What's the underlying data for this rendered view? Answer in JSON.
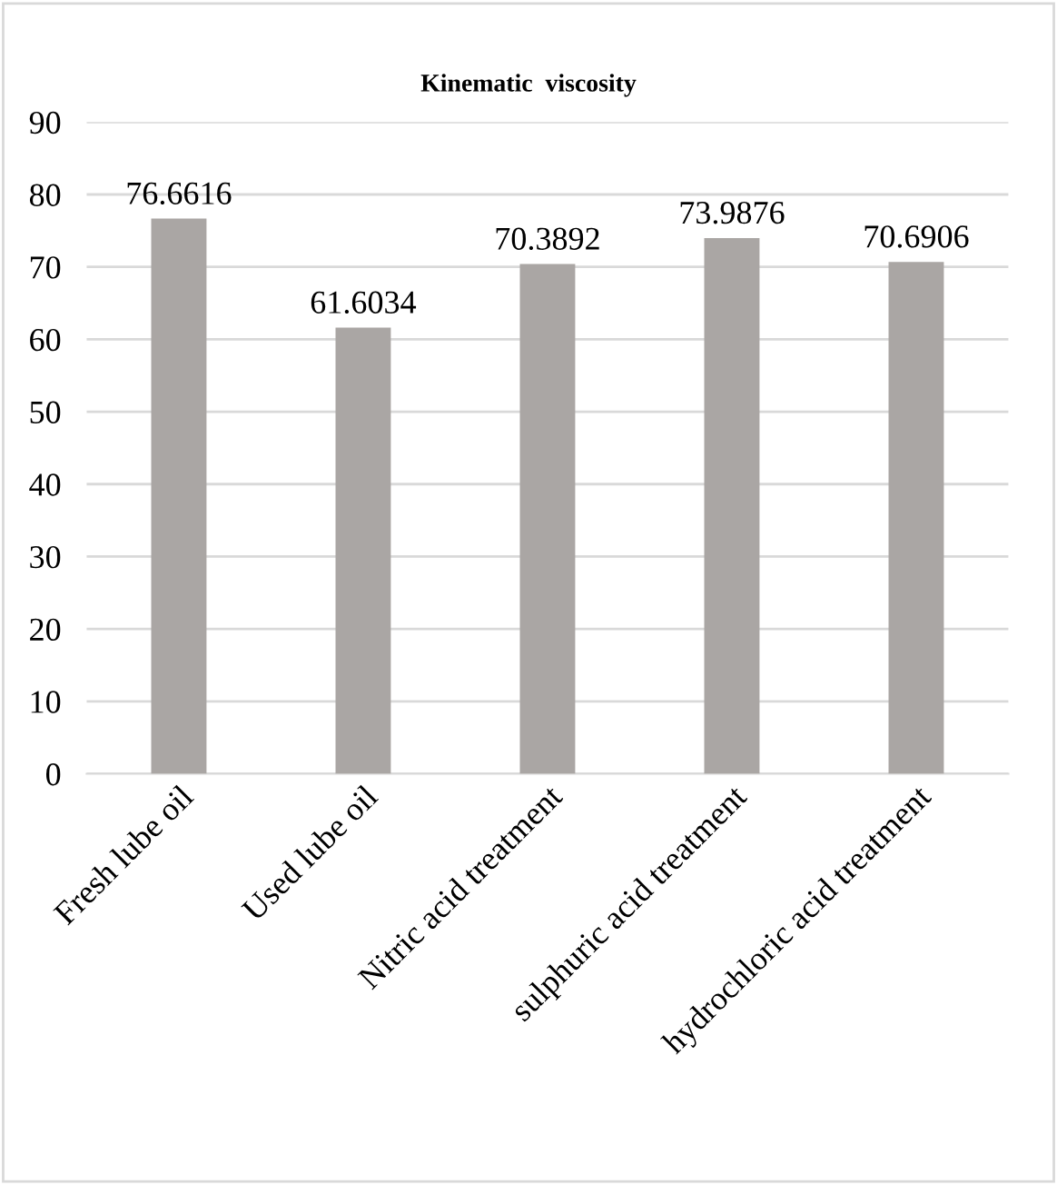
{
  "chart_data": {
    "type": "bar",
    "title": "Kinematic  viscosity",
    "categories": [
      "Fresh lube oil",
      "Used lube oil",
      "Nitric acid treatment",
      "sulphuric acid treatment",
      "hydrochloric acid treatment"
    ],
    "values": [
      76.6616,
      61.6034,
      70.3892,
      73.9876,
      70.6906
    ],
    "color": "#aaa6a4",
    "ylim": [
      0,
      90
    ],
    "yticks": [
      0,
      10,
      20,
      30,
      40,
      50,
      60,
      70,
      80,
      90
    ],
    "grid": "y",
    "data_labels": true
  }
}
